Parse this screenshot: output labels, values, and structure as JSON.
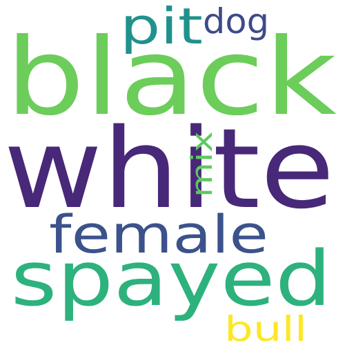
{
  "word_cloud": {
    "background": "#ffffff",
    "words": [
      {
        "text": "black",
        "color": "#6ccd5a"
      },
      {
        "text": "white",
        "color": "#482878"
      },
      {
        "text": "spayed",
        "color": "#2db27d"
      },
      {
        "text": "female",
        "color": "#3b528b"
      },
      {
        "text": "pit",
        "color": "#21918c"
      },
      {
        "text": "dog",
        "color": "#3e4a89"
      },
      {
        "text": "mix",
        "color": "#5ec962"
      },
      {
        "text": "bull",
        "color": "#fde725"
      }
    ]
  }
}
